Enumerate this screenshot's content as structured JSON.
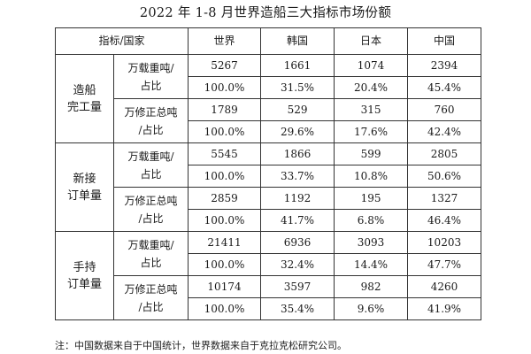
{
  "title": "2022 年 1-8 月世界造船三大指标市场份额",
  "header": {
    "corner": "指标/国家",
    "columns": [
      "世界",
      "韩国",
      "日本",
      "中国"
    ]
  },
  "groups": [
    {
      "label": "造船\n完工量",
      "metrics": [
        {
          "label": "万载重吨/\n占比",
          "values": [
            "5267",
            "1661",
            "1074",
            "2394"
          ],
          "shares": [
            "100.0%",
            "31.5%",
            "20.4%",
            "45.4%"
          ]
        },
        {
          "label": "万修正总吨\n/占比",
          "values": [
            "1789",
            "529",
            "315",
            "760"
          ],
          "shares": [
            "100.0%",
            "29.6%",
            "17.6%",
            "42.4%"
          ]
        }
      ]
    },
    {
      "label": "新接\n订单量",
      "metrics": [
        {
          "label": "万载重吨/\n占比",
          "values": [
            "5545",
            "1866",
            "599",
            "2805"
          ],
          "shares": [
            "100.0%",
            "33.7%",
            "10.8%",
            "50.6%"
          ]
        },
        {
          "label": "万修正总吨\n/占比",
          "values": [
            "2859",
            "1192",
            "195",
            "1327"
          ],
          "shares": [
            "100.0%",
            "41.7%",
            "6.8%",
            "46.4%"
          ]
        }
      ]
    },
    {
      "label": "手持\n订单量",
      "metrics": [
        {
          "label": "万载重吨/\n占比",
          "values": [
            "21411",
            "6936",
            "3093",
            "10203"
          ],
          "shares": [
            "100.0%",
            "32.4%",
            "14.4%",
            "47.7%"
          ]
        },
        {
          "label": "万修正总吨\n/占比",
          "values": [
            "10174",
            "3597",
            "982",
            "4260"
          ],
          "shares": [
            "100.0%",
            "35.4%",
            "9.6%",
            "41.9%"
          ]
        }
      ]
    }
  ],
  "footnote": "注：中国数据来自于中国统计，世界数据来自于克拉克松研究公司。"
}
